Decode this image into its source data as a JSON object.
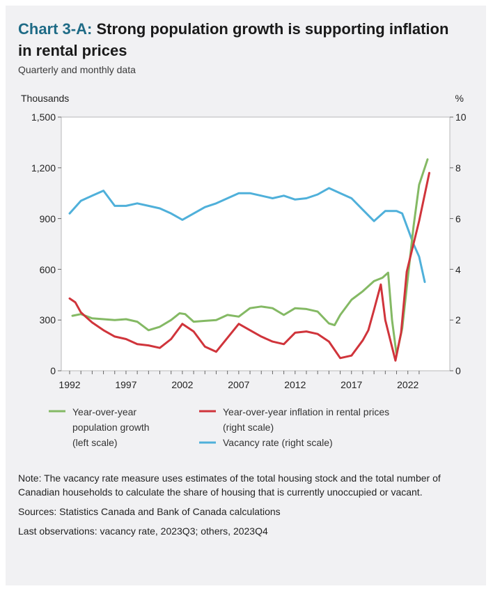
{
  "header": {
    "title_prefix": "Chart 3-A:",
    "title_text": "Strong population growth is supporting inflation in rental prices",
    "subtitle": "Quarterly and monthly data"
  },
  "colors": {
    "population": "#84b964",
    "rental": "#d0343b",
    "vacancy": "#4fb0da",
    "title_accent": "#1f6b86"
  },
  "chart_data": {
    "type": "line",
    "left_axis": {
      "label": "Thousands",
      "range": [
        0,
        1500
      ],
      "ticks": [
        "0",
        "300",
        "600",
        "900",
        "1,200",
        "1,500"
      ]
    },
    "right_axis": {
      "label": "%",
      "range": [
        0,
        10
      ],
      "ticks": [
        "0",
        "2",
        "4",
        "6",
        "8",
        "10"
      ]
    },
    "x_axis": {
      "range": [
        1992,
        2024
      ],
      "ticks": [
        "1992",
        "1997",
        "2002",
        "2007",
        "2012",
        "2017",
        "2022"
      ]
    },
    "grid": false,
    "legend_position": "bottom",
    "series": [
      {
        "name": "Year-over-year population growth (left scale)",
        "axis": "left",
        "x": [
          1992.25,
          1993,
          1994,
          1995,
          1996,
          1997,
          1998,
          1999,
          2000,
          2001,
          2001.75,
          2002.25,
          2003,
          2004,
          2005,
          2006,
          2007,
          2008,
          2009,
          2010,
          2011,
          2012,
          2013,
          2014,
          2015,
          2015.5,
          2016,
          2017,
          2018,
          2019,
          2019.75,
          2020.25,
          2020.6,
          2021,
          2021.5,
          2022,
          2022.5,
          2023,
          2023.75
        ],
        "y": [
          325,
          335,
          310,
          305,
          300,
          305,
          290,
          240,
          260,
          300,
          340,
          335,
          290,
          295,
          300,
          330,
          320,
          370,
          380,
          370,
          330,
          370,
          365,
          350,
          280,
          270,
          330,
          420,
          470,
          530,
          550,
          580,
          300,
          95,
          250,
          550,
          850,
          1100,
          1250
        ]
      },
      {
        "name": "Year-over-year inflation in rental prices (right scale)",
        "axis": "right",
        "x": [
          1992,
          1992.5,
          1993,
          1994,
          1995,
          1996,
          1997,
          1998,
          1999,
          2000,
          2001,
          2002,
          2003,
          2004,
          2005,
          2006,
          2007,
          2008,
          2009,
          2010,
          2011,
          2012,
          2013,
          2014,
          2015,
          2016,
          2017,
          2018,
          2018.5,
          2019,
          2019.6,
          2020,
          2020.9,
          2021.4,
          2021.9,
          2022.5,
          2023,
          2023.9
        ],
        "y": [
          2.85,
          2.7,
          2.3,
          1.9,
          1.6,
          1.35,
          1.25,
          1.05,
          1.0,
          0.9,
          1.25,
          1.85,
          1.55,
          0.95,
          0.75,
          1.3,
          1.85,
          1.6,
          1.35,
          1.15,
          1.05,
          1.5,
          1.55,
          1.45,
          1.15,
          0.5,
          0.6,
          1.2,
          1.6,
          2.4,
          3.4,
          2.0,
          0.4,
          1.5,
          3.9,
          5.0,
          5.9,
          7.8
        ]
      },
      {
        "name": "Vacancy rate (right scale)",
        "axis": "right",
        "x": [
          1992,
          1993,
          1994,
          1995,
          1996,
          1997,
          1998,
          1999,
          2000,
          2001,
          2002,
          2003,
          2004,
          2005,
          2006,
          2007,
          2008,
          2009,
          2010,
          2011,
          2012,
          2013,
          2014,
          2015,
          2016,
          2017,
          2018,
          2019,
          2020,
          2021,
          2021.5,
          2022,
          2022.5,
          2023,
          2023.5
        ],
        "y": [
          6.2,
          6.7,
          6.9,
          7.1,
          6.5,
          6.5,
          6.6,
          6.5,
          6.4,
          6.2,
          5.95,
          6.2,
          6.45,
          6.6,
          6.8,
          7.0,
          7.0,
          6.9,
          6.8,
          6.9,
          6.75,
          6.8,
          6.95,
          7.2,
          7.0,
          6.8,
          6.35,
          5.9,
          6.3,
          6.3,
          6.2,
          5.6,
          5.0,
          4.5,
          3.5
        ]
      }
    ]
  },
  "legend": {
    "population": [
      "Year-over-year",
      "population growth",
      "(left scale)"
    ],
    "rental": [
      "Year-over-year inflation in rental prices",
      "(right scale)"
    ],
    "vacancy": [
      "Vacancy rate (right scale)"
    ]
  },
  "notes": {
    "note": "Note: The vacancy rate measure uses estimates of the total housing stock and the total number of Canadian households to calculate the share of housing that is currently unoccupied or vacant.",
    "sources": "Sources: Statistics Canada and Bank of Canada calculations",
    "last_obs": "Last observations: vacancy rate, 2023Q3; others, 2023Q4"
  }
}
